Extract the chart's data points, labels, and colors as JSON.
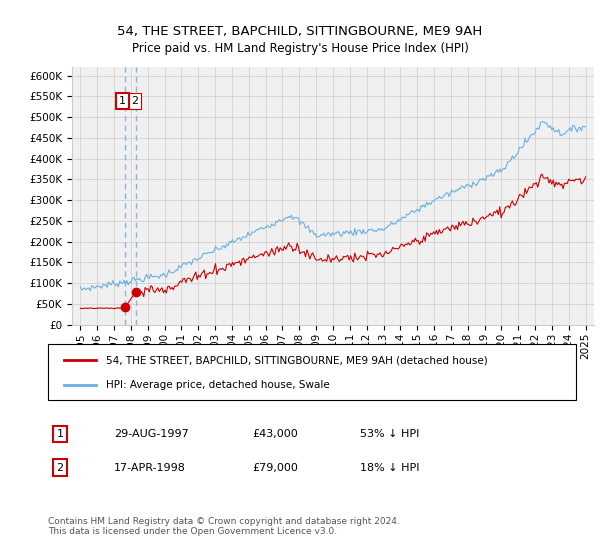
{
  "title": "54, THE STREET, BAPCHILD, SITTINGBOURNE, ME9 9AH",
  "subtitle": "Price paid vs. HM Land Registry's House Price Index (HPI)",
  "legend_line1": "54, THE STREET, BAPCHILD, SITTINGBOURNE, ME9 9AH (detached house)",
  "legend_line2": "HPI: Average price, detached house, Swale",
  "footer": "Contains HM Land Registry data © Crown copyright and database right 2024.\nThis data is licensed under the Open Government Licence v3.0.",
  "annotation1_date": "29-AUG-1997",
  "annotation1_price": "£43,000",
  "annotation1_hpi": "53% ↓ HPI",
  "annotation2_date": "17-APR-1998",
  "annotation2_price": "£79,000",
  "annotation2_hpi": "18% ↓ HPI",
  "sale1_x": 1997.66,
  "sale1_y": 43000,
  "sale2_x": 1998.29,
  "sale2_y": 79000,
  "red_line_color": "#cc0000",
  "blue_line_color": "#6ab0e0",
  "grid_color": "#cccccc",
  "background_color": "#f0f0f0",
  "annotation_box_color": "#cc0000",
  "dashed_line_color": "#8ab4d8",
  "ylim": [
    0,
    620000
  ],
  "xlim": [
    1994.5,
    2025.5
  ],
  "ytick_labels": [
    "£0",
    "£50K",
    "£100K",
    "£150K",
    "£200K",
    "£250K",
    "£300K",
    "£350K",
    "£400K",
    "£450K",
    "£500K",
    "£550K",
    "£600K"
  ],
  "ytick_values": [
    0,
    50000,
    100000,
    150000,
    200000,
    250000,
    300000,
    350000,
    400000,
    450000,
    500000,
    550000,
    600000
  ],
  "xtick_values": [
    1995,
    1996,
    1997,
    1998,
    1999,
    2000,
    2001,
    2002,
    2003,
    2004,
    2005,
    2006,
    2007,
    2008,
    2009,
    2010,
    2011,
    2012,
    2013,
    2014,
    2015,
    2016,
    2017,
    2018,
    2019,
    2020,
    2021,
    2022,
    2023,
    2024,
    2025
  ],
  "xtick_labels": [
    "1995",
    "1996",
    "1997",
    "1998",
    "1999",
    "2000",
    "2001",
    "2002",
    "2003",
    "2004",
    "2005",
    "2006",
    "2007",
    "2008",
    "2009",
    "2010",
    "2011",
    "2012",
    "2013",
    "2014",
    "2015",
    "2016",
    "2017",
    "2018",
    "2019",
    "2020",
    "2021",
    "2022",
    "2023",
    "2024",
    "2025"
  ]
}
